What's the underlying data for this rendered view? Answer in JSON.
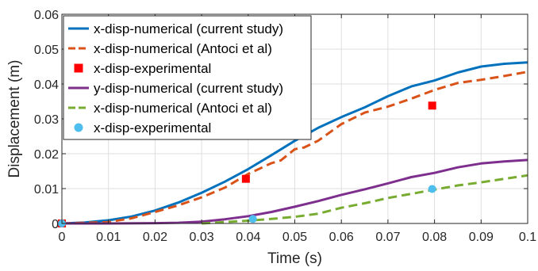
{
  "chart_data": {
    "type": "line",
    "xlabel": "Time (s)",
    "ylabel": "Displacement (m)",
    "xlim": [
      0,
      0.1
    ],
    "ylim": [
      0,
      0.06
    ],
    "xticks": [
      0,
      0.01,
      0.02,
      0.03,
      0.04,
      0.05,
      0.06,
      0.07,
      0.08,
      0.09,
      0.1
    ],
    "xtick_labels": [
      "0",
      "0.01",
      "0.02",
      "0.03",
      "0.04",
      "0.05",
      "0.06",
      "0.07",
      "0.08",
      "0.09",
      "0.1"
    ],
    "yticks": [
      0,
      0.01,
      0.02,
      0.03,
      0.04,
      0.05,
      0.06
    ],
    "ytick_labels": [
      "0",
      "0.01",
      "0.02",
      "0.03",
      "0.04",
      "0.05",
      "0.06"
    ],
    "grid": true,
    "legend_position": "top-left",
    "series": [
      {
        "name": "x-disp-numerical (current study)",
        "style": "solid",
        "marker": "none",
        "color": "#0072BD",
        "points": [
          [
            0,
            0
          ],
          [
            0.005,
            0.0003
          ],
          [
            0.01,
            0.0009
          ],
          [
            0.015,
            0.002
          ],
          [
            0.02,
            0.0037
          ],
          [
            0.025,
            0.006
          ],
          [
            0.03,
            0.0088
          ],
          [
            0.035,
            0.012
          ],
          [
            0.04,
            0.0156
          ],
          [
            0.045,
            0.0196
          ],
          [
            0.05,
            0.0237
          ],
          [
            0.055,
            0.0274
          ],
          [
            0.06,
            0.0305
          ],
          [
            0.065,
            0.0333
          ],
          [
            0.07,
            0.0365
          ],
          [
            0.075,
            0.0393
          ],
          [
            0.08,
            0.041
          ],
          [
            0.085,
            0.0433
          ],
          [
            0.09,
            0.045
          ],
          [
            0.095,
            0.0458
          ],
          [
            0.1,
            0.0462
          ]
        ]
      },
      {
        "name": "x-disp-numerical (Antoci et al)",
        "style": "dashed",
        "marker": "none",
        "color": "#D95319",
        "points": [
          [
            0,
            0
          ],
          [
            0.01,
            0.0004
          ],
          [
            0.015,
            0.0015
          ],
          [
            0.02,
            0.0033
          ],
          [
            0.025,
            0.0052
          ],
          [
            0.03,
            0.0075
          ],
          [
            0.035,
            0.0103
          ],
          [
            0.04,
            0.0142
          ],
          [
            0.045,
            0.0173
          ],
          [
            0.047,
            0.0181
          ],
          [
            0.05,
            0.0213
          ],
          [
            0.052,
            0.0218
          ],
          [
            0.055,
            0.0237
          ],
          [
            0.06,
            0.0285
          ],
          [
            0.065,
            0.0318
          ],
          [
            0.07,
            0.0335
          ],
          [
            0.075,
            0.0358
          ],
          [
            0.08,
            0.0383
          ],
          [
            0.085,
            0.0403
          ],
          [
            0.09,
            0.0412
          ],
          [
            0.095,
            0.0423
          ],
          [
            0.1,
            0.0435
          ]
        ]
      },
      {
        "name": "x-disp-experimental",
        "style": "none",
        "marker": "square",
        "color": "#FF0000",
        "points": [
          [
            0,
            0
          ],
          [
            0.0395,
            0.0128
          ],
          [
            0.0795,
            0.0338
          ]
        ]
      },
      {
        "name": "y-disp-numerical (current study)",
        "style": "solid",
        "marker": "none",
        "color": "#7E2F8E",
        "points": [
          [
            0,
            0
          ],
          [
            0.01,
            0
          ],
          [
            0.02,
            0.0001
          ],
          [
            0.025,
            0.0002
          ],
          [
            0.03,
            0.0005
          ],
          [
            0.035,
            0.0012
          ],
          [
            0.04,
            0.0021
          ],
          [
            0.045,
            0.0033
          ],
          [
            0.05,
            0.0048
          ],
          [
            0.055,
            0.0064
          ],
          [
            0.06,
            0.0082
          ],
          [
            0.065,
            0.0098
          ],
          [
            0.07,
            0.0115
          ],
          [
            0.075,
            0.0133
          ],
          [
            0.08,
            0.0145
          ],
          [
            0.085,
            0.0161
          ],
          [
            0.09,
            0.0172
          ],
          [
            0.095,
            0.0178
          ],
          [
            0.1,
            0.0182
          ]
        ]
      },
      {
        "name": "x-disp-numerical (Antoci et al)",
        "style": "dashed",
        "marker": "none",
        "color": "#77AC30",
        "points": [
          [
            0.03,
            0
          ],
          [
            0.035,
            0.0004
          ],
          [
            0.04,
            0.0008
          ],
          [
            0.045,
            0.0013
          ],
          [
            0.05,
            0.0019
          ],
          [
            0.055,
            0.0028
          ],
          [
            0.06,
            0.0045
          ],
          [
            0.065,
            0.0058
          ],
          [
            0.07,
            0.0073
          ],
          [
            0.075,
            0.0085
          ],
          [
            0.08,
            0.0097
          ],
          [
            0.085,
            0.0109
          ],
          [
            0.09,
            0.0118
          ],
          [
            0.095,
            0.0128
          ],
          [
            0.1,
            0.0138
          ]
        ]
      },
      {
        "name": "x-disp-experimental",
        "style": "none",
        "marker": "circle",
        "color": "#4DBEEE",
        "points": [
          [
            0,
            0
          ],
          [
            0.041,
            0.0013
          ],
          [
            0.0795,
            0.0099
          ]
        ]
      }
    ]
  }
}
